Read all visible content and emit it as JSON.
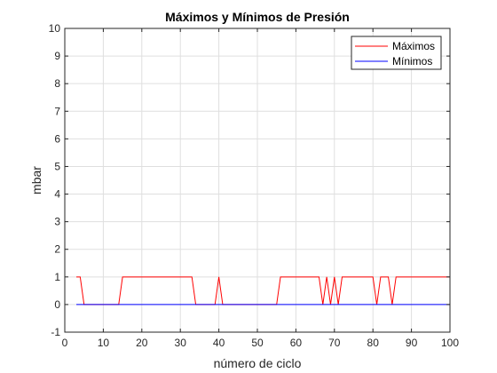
{
  "chart_data": {
    "type": "line",
    "title": "Máximos y Mínimos de Presión",
    "xlabel": "número de ciclo",
    "ylabel": "mbar",
    "xlim": [
      0,
      100
    ],
    "ylim": [
      -1,
      10
    ],
    "xticks": [
      0,
      10,
      20,
      30,
      40,
      50,
      60,
      70,
      80,
      90,
      100
    ],
    "yticks": [
      -1,
      0,
      1,
      2,
      3,
      4,
      5,
      6,
      7,
      8,
      9,
      10
    ],
    "grid": true,
    "legend_position": "top-right",
    "series": [
      {
        "name": "Máximos",
        "color": "#ff0000",
        "x": [
          3,
          4,
          5,
          14,
          15,
          33,
          34,
          39,
          40,
          41,
          55,
          56,
          66,
          67,
          68,
          69,
          70,
          71,
          72,
          80,
          81,
          82,
          84,
          85,
          86,
          100
        ],
        "y": [
          1,
          1,
          0,
          0,
          1,
          1,
          0,
          0,
          1,
          0,
          0,
          1,
          1,
          0,
          1,
          0,
          1,
          0,
          1,
          1,
          0,
          1,
          1,
          0,
          1,
          1
        ]
      },
      {
        "name": "Mínimos",
        "color": "#0000ff",
        "x": [
          3,
          100
        ],
        "y": [
          0,
          0
        ]
      }
    ]
  }
}
